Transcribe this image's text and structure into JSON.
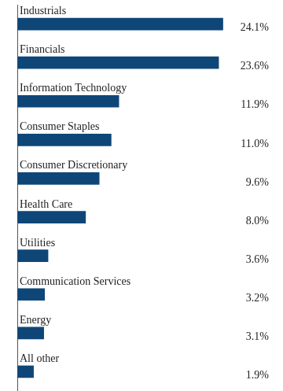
{
  "chart_data": {
    "type": "bar",
    "orientation": "horizontal",
    "categories": [
      "Industrials",
      "Financials",
      "Information Technology",
      "Consumer Staples",
      "Consumer Discretionary",
      "Health Care",
      "Utilities",
      "Communication Services",
      "Energy",
      "All other"
    ],
    "values": [
      24.1,
      23.6,
      11.9,
      11.0,
      9.6,
      8.0,
      3.6,
      3.2,
      3.1,
      1.9
    ],
    "value_labels": [
      "24.1%",
      "23.6%",
      "11.9%",
      "11.0%",
      "9.6%",
      "8.0%",
      "3.6%",
      "3.2%",
      "3.1%",
      "1.9%"
    ],
    "data_labels": true,
    "color": "#0f4678",
    "xlim": [
      0,
      27
    ],
    "grid": false,
    "tick_labels": "y"
  }
}
